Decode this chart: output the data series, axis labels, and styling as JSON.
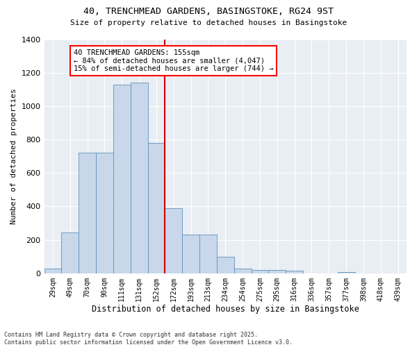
{
  "title": "40, TRENCHMEAD GARDENS, BASINGSTOKE, RG24 9ST",
  "subtitle": "Size of property relative to detached houses in Basingstoke",
  "xlabel": "Distribution of detached houses by size in Basingstoke",
  "ylabel": "Number of detached properties",
  "categories": [
    "29sqm",
    "49sqm",
    "70sqm",
    "90sqm",
    "111sqm",
    "131sqm",
    "152sqm",
    "172sqm",
    "193sqm",
    "213sqm",
    "234sqm",
    "254sqm",
    "275sqm",
    "295sqm",
    "316sqm",
    "336sqm",
    "357sqm",
    "377sqm",
    "398sqm",
    "418sqm",
    "439sqm"
  ],
  "values": [
    30,
    245,
    720,
    720,
    1130,
    1140,
    780,
    390,
    230,
    230,
    100,
    30,
    20,
    20,
    15,
    0,
    0,
    8,
    0,
    0,
    0
  ],
  "bar_color": "#c8d8ea",
  "bar_edge_color": "#6090bb",
  "vline_color": "#cc0000",
  "annotation_text": "40 TRENCHMEAD GARDENS: 155sqm\n← 84% of detached houses are smaller (4,047)\n15% of semi-detached houses are larger (744) →",
  "ylim": [
    0,
    1400
  ],
  "yticks": [
    0,
    200,
    400,
    600,
    800,
    1000,
    1200,
    1400
  ],
  "bg_color": "#e8eef4",
  "grid_color": "#ffffff",
  "footer": "Contains HM Land Registry data © Crown copyright and database right 2025.\nContains public sector information licensed under the Open Government Licence v3.0."
}
